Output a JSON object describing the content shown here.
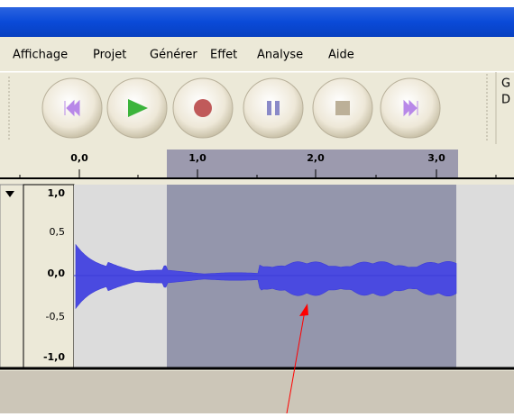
{
  "menu": [
    "Affichage",
    "Projet",
    "Générer",
    "Effet",
    "Analyse",
    "Aide"
  ],
  "meter": [
    "G",
    "D"
  ],
  "ruler": [
    "0,0",
    "1,0",
    "2,0",
    "3,0"
  ],
  "track_scale": [
    "1,0",
    "0,5",
    "0,0",
    "-0,5",
    "-1,0"
  ]
}
